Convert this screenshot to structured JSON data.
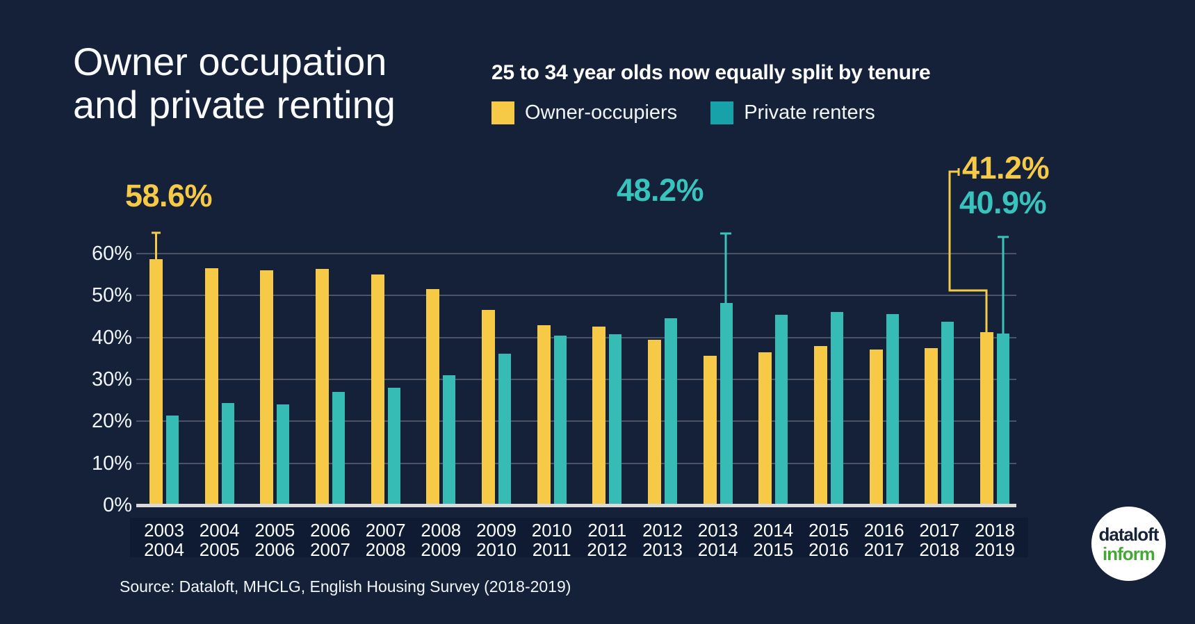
{
  "page": {
    "background": "#142139"
  },
  "header": {
    "title": "Owner occupation\nand private renting",
    "subtitle": "25 to 34 year olds now equally split by tenure"
  },
  "legend": [
    {
      "label": "Owner-occupiers",
      "color": "#f6c946"
    },
    {
      "label": "Private renters",
      "color": "#17a1a9"
    }
  ],
  "chart_data": {
    "type": "bar",
    "title": "25 to 34 year olds now equally split by tenure",
    "categories": [
      "2003\n2004",
      "2004\n2005",
      "2005\n2006",
      "2006\n2007",
      "2007\n2008",
      "2008\n2009",
      "2009\n2010",
      "2010\n2011",
      "2011\n2012",
      "2012\n2013",
      "2013\n2014",
      "2014\n2015",
      "2015\n2016",
      "2016\n2017",
      "2017\n2018",
      "2018\n2019"
    ],
    "series": [
      {
        "name": "Owner-occupiers",
        "color": "#f6c946",
        "values": [
          58.6,
          56.5,
          56.0,
          56.4,
          55.0,
          51.5,
          46.5,
          43.0,
          42.6,
          39.4,
          35.7,
          36.5,
          38.0,
          37.2,
          37.5,
          41.2
        ]
      },
      {
        "name": "Private renters",
        "color": "#36bcb4",
        "values": [
          21.3,
          24.3,
          24.0,
          27.0,
          28.0,
          31.0,
          36.2,
          40.4,
          40.7,
          44.6,
          48.2,
          45.4,
          46.0,
          45.6,
          43.8,
          40.9
        ]
      }
    ],
    "xlabel": "",
    "ylabel": "",
    "ylim": [
      0,
      60
    ],
    "yticks": [
      "0%",
      "10%",
      "20%",
      "30%",
      "40%",
      "50%",
      "60%"
    ],
    "grid": true,
    "legend_position": "top",
    "annotations": [
      {
        "text": "58.6%",
        "color": "#f6c946",
        "series": 0,
        "index": 0
      },
      {
        "text": "48.2%",
        "color": "#38c4bc",
        "series": 1,
        "index": 10
      },
      {
        "text": "41.2%",
        "color": "#f6c946",
        "series": 0,
        "index": 15
      },
      {
        "text": "40.9%",
        "color": "#38c4bc",
        "series": 1,
        "index": 15
      }
    ],
    "grid_color": "#4d5367",
    "baseline_color": "#dadada",
    "label_band_color": "#0e1b33"
  },
  "source": "Source: Dataloft, MHCLG, English Housing Survey (2018-2019)",
  "logo": {
    "line1": "dataloft",
    "line2": "inform",
    "line1_color": "#152238",
    "line2_color": "#45a735",
    "circle_color": "#ffffff"
  }
}
